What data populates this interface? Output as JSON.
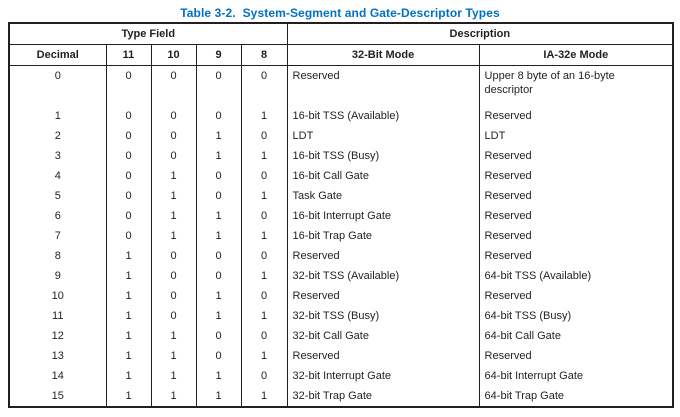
{
  "title": "Table 3-2.  System-Segment and Gate-Descriptor Types",
  "colors": {
    "title_blue": "#0071c5",
    "text": "#231f20",
    "border": "#231f20",
    "background": "#ffffff"
  },
  "table": {
    "group_headers": [
      {
        "label": "Type Field",
        "colspan": 5
      },
      {
        "label": "Description",
        "colspan": 2
      }
    ],
    "columns": [
      "Decimal",
      "11",
      "10",
      "9",
      "8",
      "32-Bit Mode",
      "IA-32e Mode"
    ],
    "rows": [
      {
        "decimal": "0",
        "b11": "0",
        "b10": "0",
        "b9": "0",
        "b8": "0",
        "mode32": "Reserved",
        "ia32e": "Upper 8 byte of an 16-byte descriptor"
      },
      {
        "decimal": "1",
        "b11": "0",
        "b10": "0",
        "b9": "0",
        "b8": "1",
        "mode32": "16-bit TSS (Available)",
        "ia32e": "Reserved"
      },
      {
        "decimal": "2",
        "b11": "0",
        "b10": "0",
        "b9": "1",
        "b8": "0",
        "mode32": "LDT",
        "ia32e": "LDT"
      },
      {
        "decimal": "3",
        "b11": "0",
        "b10": "0",
        "b9": "1",
        "b8": "1",
        "mode32": "16-bit TSS (Busy)",
        "ia32e": "Reserved"
      },
      {
        "decimal": "4",
        "b11": "0",
        "b10": "1",
        "b9": "0",
        "b8": "0",
        "mode32": "16-bit Call Gate",
        "ia32e": "Reserved"
      },
      {
        "decimal": "5",
        "b11": "0",
        "b10": "1",
        "b9": "0",
        "b8": "1",
        "mode32": "Task Gate",
        "ia32e": "Reserved"
      },
      {
        "decimal": "6",
        "b11": "0",
        "b10": "1",
        "b9": "1",
        "b8": "0",
        "mode32": "16-bit Interrupt Gate",
        "ia32e": "Reserved"
      },
      {
        "decimal": "7",
        "b11": "0",
        "b10": "1",
        "b9": "1",
        "b8": "1",
        "mode32": "16-bit Trap Gate",
        "ia32e": "Reserved"
      },
      {
        "decimal": "8",
        "b11": "1",
        "b10": "0",
        "b9": "0",
        "b8": "0",
        "mode32": "Reserved",
        "ia32e": "Reserved"
      },
      {
        "decimal": "9",
        "b11": "1",
        "b10": "0",
        "b9": "0",
        "b8": "1",
        "mode32": "32-bit TSS (Available)",
        "ia32e": "64-bit TSS (Available)"
      },
      {
        "decimal": "10",
        "b11": "1",
        "b10": "0",
        "b9": "1",
        "b8": "0",
        "mode32": "Reserved",
        "ia32e": "Reserved"
      },
      {
        "decimal": "11",
        "b11": "1",
        "b10": "0",
        "b9": "1",
        "b8": "1",
        "mode32": "32-bit TSS (Busy)",
        "ia32e": "64-bit TSS (Busy)"
      },
      {
        "decimal": "12",
        "b11": "1",
        "b10": "1",
        "b9": "0",
        "b8": "0",
        "mode32": "32-bit Call Gate",
        "ia32e": "64-bit Call Gate"
      },
      {
        "decimal": "13",
        "b11": "1",
        "b10": "1",
        "b9": "0",
        "b8": "1",
        "mode32": "Reserved",
        "ia32e": "Reserved"
      },
      {
        "decimal": "14",
        "b11": "1",
        "b10": "1",
        "b9": "1",
        "b8": "0",
        "mode32": "32-bit Interrupt Gate",
        "ia32e": "64-bit Interrupt Gate"
      },
      {
        "decimal": "15",
        "b11": "1",
        "b10": "1",
        "b9": "1",
        "b8": "1",
        "mode32": "32-bit Trap Gate",
        "ia32e": "64-bit Trap Gate"
      }
    ]
  }
}
